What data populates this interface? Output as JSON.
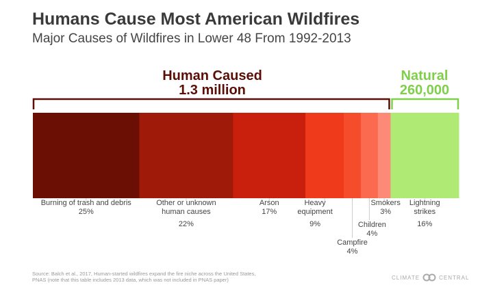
{
  "title": "Humans Cause Most American Wildfires",
  "subtitle": "Major Causes of Wildfires in Lower 48 From 1992-2013",
  "groups": {
    "human": {
      "label": "Human Caused",
      "value": "1.3 million",
      "color": "#5a0e06"
    },
    "natural": {
      "label": "Natural",
      "value": "260,000",
      "color": "#7fcf4a"
    }
  },
  "chart_data": {
    "type": "bar",
    "orientation": "horizontal-stacked-100",
    "categories": [
      "Burning of trash and debris",
      "Other or unknown human causes",
      "Arson",
      "Heavy equipment",
      "Campfire",
      "Children",
      "Smokers",
      "Lightning strikes"
    ],
    "values": [
      25,
      22,
      17,
      9,
      4,
      4,
      3,
      16
    ],
    "value_labels": [
      "25%",
      "22%",
      "17%",
      "9%",
      "4%",
      "4%",
      "3%",
      "16%"
    ],
    "colors": [
      "#6b0f05",
      "#a01a0a",
      "#c8200c",
      "#f03a1c",
      "#f54d2c",
      "#fb6a4e",
      "#fd8a76",
      "#aeea74"
    ],
    "unit": "%"
  },
  "source": "Source: Balch et al., 2017, Human-started wildfires expand the fire niche across the United States, PNAS (note that this table includes 2013 data, which was not included in PNAS paper)",
  "logo": {
    "left": "CLIMATE",
    "right": "CENTRAL"
  }
}
